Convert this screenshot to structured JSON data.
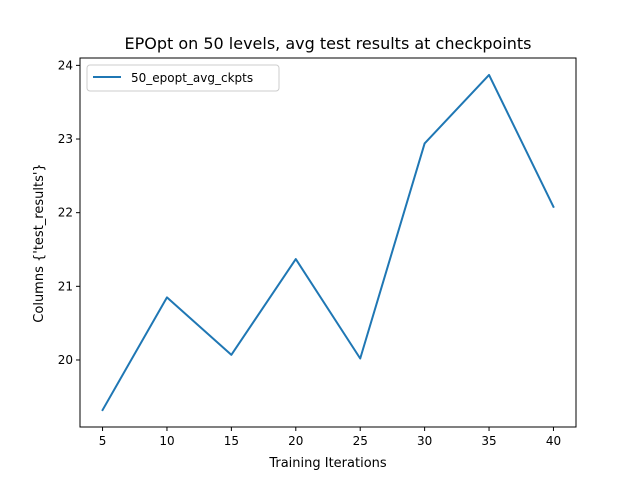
{
  "chart_data": {
    "type": "line",
    "title": "EPOpt on 50 levels, avg test results at checkpoints",
    "xlabel": "Training Iterations",
    "ylabel": "Columns {'test_results'}",
    "x": [
      5,
      10,
      15,
      20,
      25,
      30,
      35,
      40
    ],
    "series": [
      {
        "name": "50_epopt_avg_ckpts",
        "values": [
          19.32,
          20.85,
          20.07,
          21.37,
          20.02,
          22.94,
          23.87,
          22.08
        ],
        "color": "#1f77b4"
      }
    ],
    "xlim": [
      3.25,
      41.75
    ],
    "ylim": [
      19.09,
      24.1
    ],
    "xticks": [
      5,
      10,
      15,
      20,
      25,
      30,
      35,
      40
    ],
    "yticks": [
      20,
      21,
      22,
      23,
      24
    ],
    "grid": false,
    "legend_position": "top-left"
  }
}
